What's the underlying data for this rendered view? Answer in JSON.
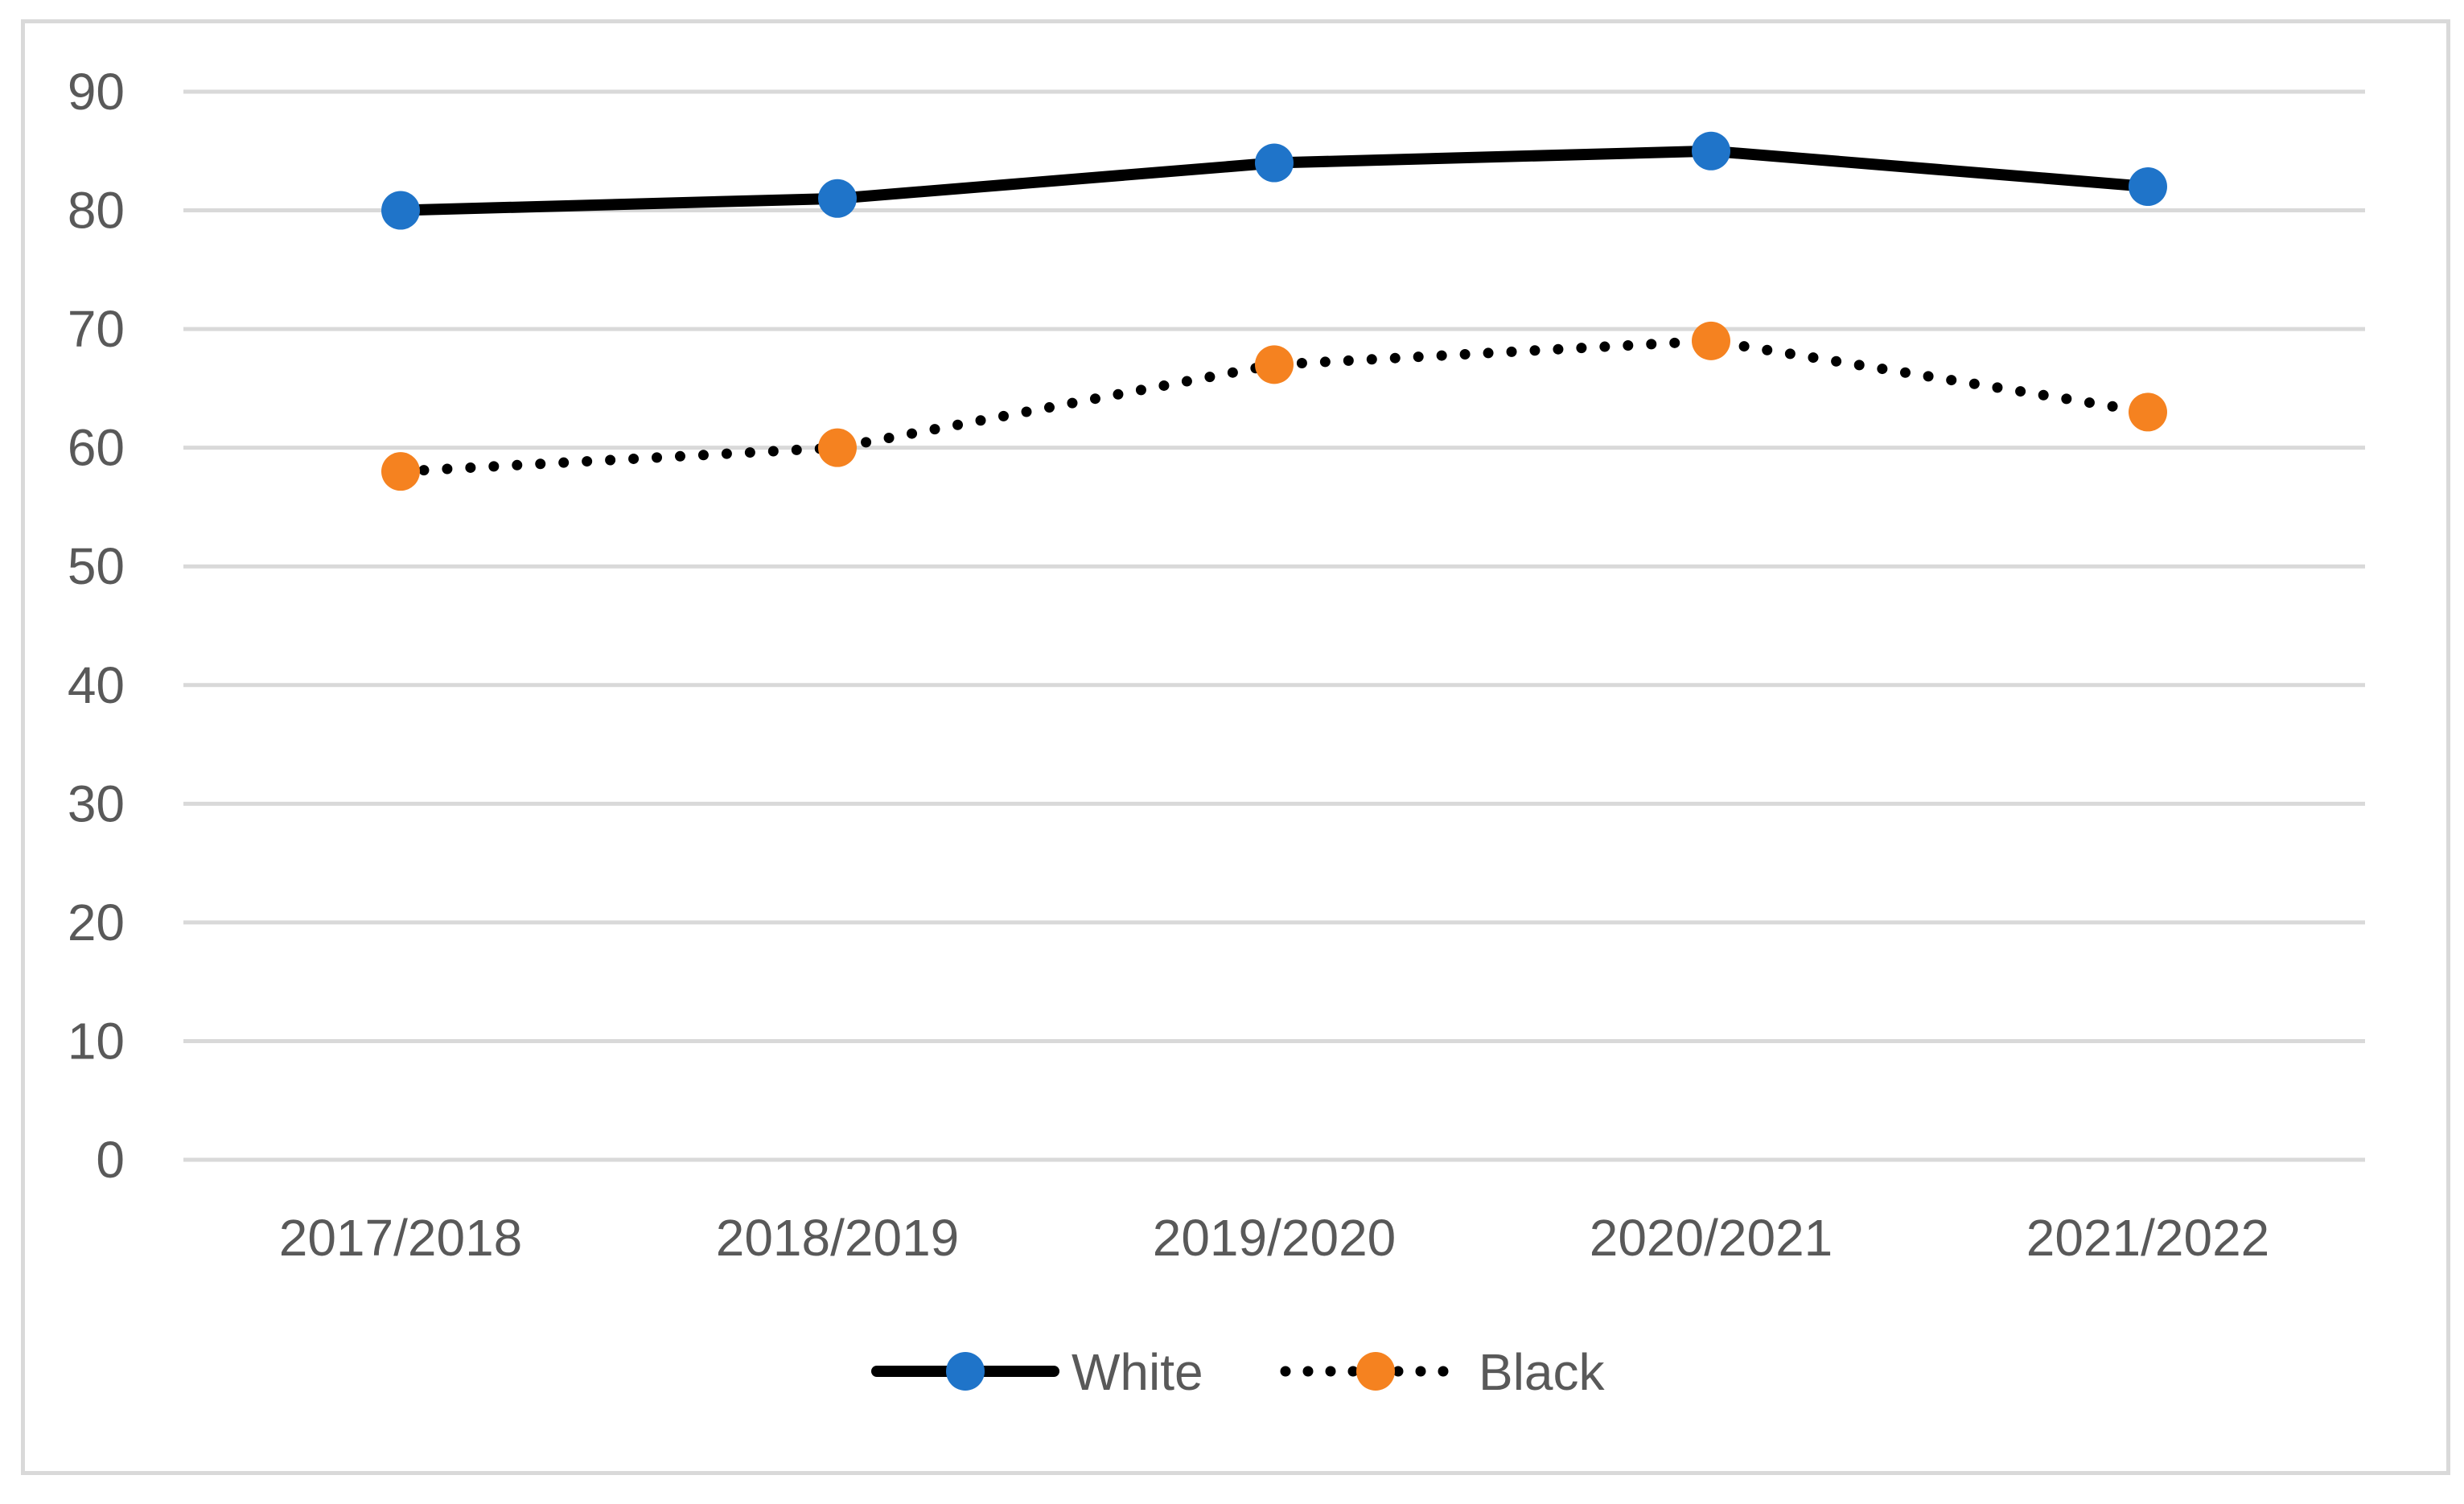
{
  "chart_data": {
    "type": "line",
    "title": "",
    "xlabel": "",
    "ylabel": "",
    "categories": [
      "2017/2018",
      "2018/2019",
      "2019/2020",
      "2020/2021",
      "2021/2022"
    ],
    "ylim": [
      0,
      90
    ],
    "yticks": [
      0,
      10,
      20,
      30,
      40,
      50,
      60,
      70,
      80,
      90
    ],
    "grid": true,
    "legend_position": "bottom",
    "series": [
      {
        "name": "White",
        "values": [
          80,
          81,
          84,
          85,
          82
        ],
        "line_color": "#000000",
        "line_style": "solid",
        "marker_color": "#1f74c9"
      },
      {
        "name": "Black",
        "values": [
          58,
          60,
          67,
          69,
          63
        ],
        "line_color": "#000000",
        "line_style": "dotted",
        "marker_color": "#f58220"
      }
    ],
    "colors": {
      "gridline": "#d9d9d9",
      "axis_text": "#595959",
      "frame": "#d9d9d9"
    }
  }
}
